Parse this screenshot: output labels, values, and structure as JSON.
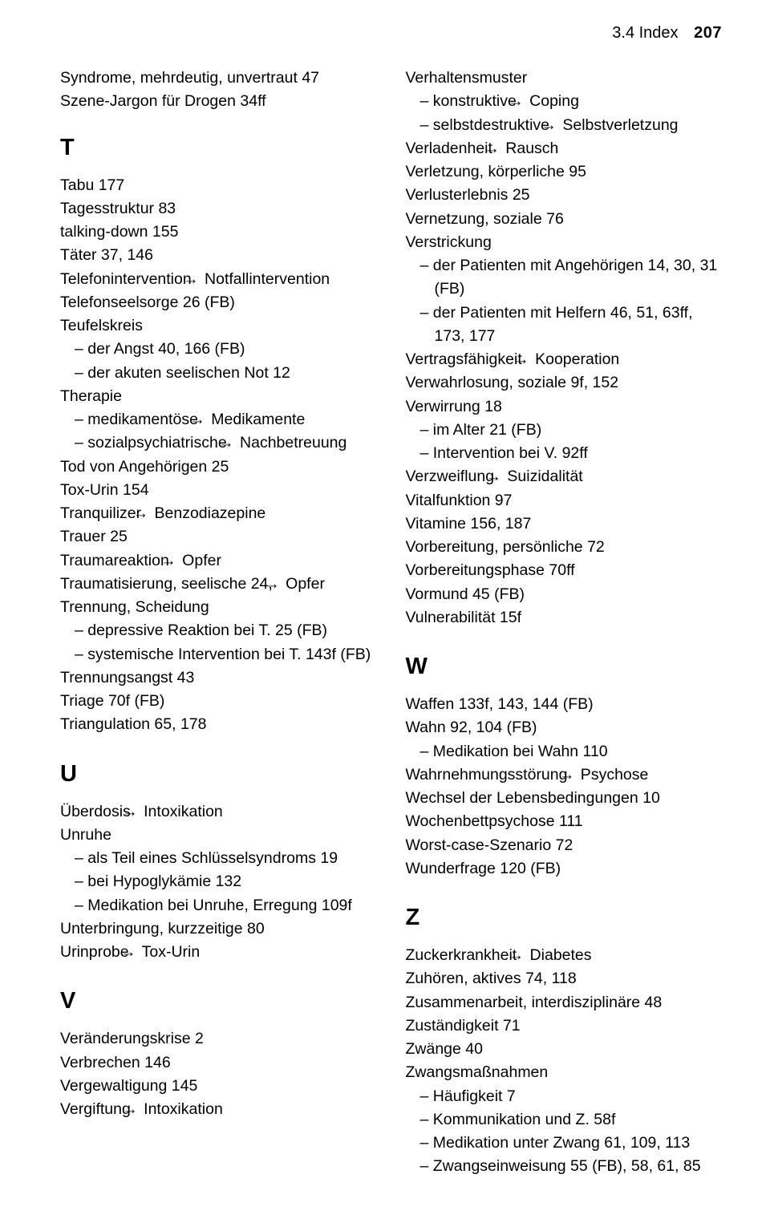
{
  "header": {
    "section": "3.4 Index",
    "page": "207"
  },
  "letters": {
    "T": "T",
    "U": "U",
    "V": "V",
    "W": "W",
    "Z": "Z"
  },
  "arrow": "→",
  "left": {
    "pre": [
      "Syndrome, mehrdeutig, unvertraut 47",
      "Szene-Jargon für Drogen 34ff"
    ],
    "T": [
      {
        "t": "Tabu 177"
      },
      {
        "t": "Tagesstruktur 83"
      },
      {
        "t": "talking-down 155"
      },
      {
        "t": "Täter  37, 146"
      },
      {
        "t": "Telefonintervention → Notfallintervention"
      },
      {
        "t": "Telefonseelsorge 26 (FB)"
      },
      {
        "t": "Teufelskreis"
      },
      {
        "t": "– der Angst 40, 166 (FB)",
        "s": 1
      },
      {
        "t": "– der akuten seelischen Not 12",
        "s": 1
      },
      {
        "t": "Therapie"
      },
      {
        "t": "– medikamentöse → Medikamente",
        "s": 1
      },
      {
        "t": "– sozialpsychiatrische → Nachbetreuung",
        "s": 1
      },
      {
        "t": "Tod von Angehörigen 25"
      },
      {
        "t": "Tox-Urin 154"
      },
      {
        "t": "Tranquilizer → Benzodiazepine"
      },
      {
        "t": "Trauer 25"
      },
      {
        "t": "Traumareaktion → Opfer"
      },
      {
        "t": "Traumatisierung, seelische 24, → Opfer"
      },
      {
        "t": "Trennung, Scheidung"
      },
      {
        "t": "– depressive Reaktion bei T. 25 (FB)",
        "s": 1
      },
      {
        "t": "– systemische Intervention bei T. 143f (FB)",
        "s": 1
      },
      {
        "t": "Trennungsangst 43"
      },
      {
        "t": "Triage 70f (FB)"
      },
      {
        "t": "Triangulation 65, 178"
      }
    ],
    "U": [
      {
        "t": "Überdosis → Intoxikation"
      },
      {
        "t": "Unruhe"
      },
      {
        "t": "– als Teil eines Schlüsselsyndroms 19",
        "s": 1
      },
      {
        "t": "– bei Hypoglykämie  132",
        "s": 1
      },
      {
        "t": "– Medikation bei Unruhe, Erregung 109f",
        "s": 1
      },
      {
        "t": "Unterbringung, kurzzeitige 80"
      },
      {
        "t": "Urinprobe → Tox-Urin"
      }
    ],
    "V": [
      {
        "t": "Veränderungskrise 2"
      },
      {
        "t": "Verbrechen 146"
      },
      {
        "t": "Vergewaltigung 145"
      },
      {
        "t": "Vergiftung → Intoxikation"
      }
    ]
  },
  "right": {
    "Vcont": [
      {
        "t": "Verhaltensmuster"
      },
      {
        "t": "– konstruktive → Coping",
        "s": 1
      },
      {
        "t": "– selbstdestruktive → Selbstverletzung",
        "s": 1
      },
      {
        "t": "Verladenheit → Rausch"
      },
      {
        "t": "Verletzung, körperliche 95"
      },
      {
        "t": "Verlusterlebnis 25"
      },
      {
        "t": "Vernetzung, soziale 76"
      },
      {
        "t": "Verstrickung"
      },
      {
        "t": "– der Patienten mit Angehörigen 14, 30, 31 (FB)",
        "s": 1
      },
      {
        "t": "– der Patienten mit Helfern 46, 51, 63ff, 173, 177",
        "s": 1
      },
      {
        "t": "Vertragsfähigkeit → Kooperation"
      },
      {
        "t": "Verwahrlosung, soziale 9f, 152"
      },
      {
        "t": "Verwirrung 18"
      },
      {
        "t": "– im Alter 21 (FB)",
        "s": 1
      },
      {
        "t": "– Intervention bei V. 92ff",
        "s": 1
      },
      {
        "t": "Verzweiflung → Suizidalität"
      },
      {
        "t": "Vitalfunktion 97"
      },
      {
        "t": "Vitamine 156, 187"
      },
      {
        "t": "Vorbereitung, persönliche 72"
      },
      {
        "t": "Vorbereitungsphase 70ff"
      },
      {
        "t": "Vormund 45 (FB)"
      },
      {
        "t": "Vulnerabilität 15f"
      }
    ],
    "W": [
      {
        "t": "Waffen 133f, 143, 144 (FB)"
      },
      {
        "t": "Wahn 92, 104 (FB)"
      },
      {
        "t": "– Medikation bei Wahn 110",
        "s": 1
      },
      {
        "t": "Wahrnehmungsstörung → Psychose"
      },
      {
        "t": "Wechsel der Lebensbedingungen 10"
      },
      {
        "t": "Wochenbettpsychose 111"
      },
      {
        "t": "Worst-case-Szenario 72"
      },
      {
        "t": "Wunderfrage 120 (FB)"
      }
    ],
    "Z": [
      {
        "t": "Zuckerkrankheit → Diabetes"
      },
      {
        "t": "Zuhören, aktives 74, 118"
      },
      {
        "t": "Zusammenarbeit, interdisziplinäre 48"
      },
      {
        "t": "Zuständigkeit 71"
      },
      {
        "t": "Zwänge 40"
      },
      {
        "t": "Zwangsmaßnahmen"
      },
      {
        "t": "– Häufigkeit 7",
        "s": 1
      },
      {
        "t": "– Kommunikation und Z. 58f",
        "s": 1
      },
      {
        "t": "– Medikation unter Zwang 61, 109, 113",
        "s": 1
      },
      {
        "t": "– Zwangseinweisung 55 (FB), 58, 61, 85",
        "s": 1
      }
    ]
  }
}
